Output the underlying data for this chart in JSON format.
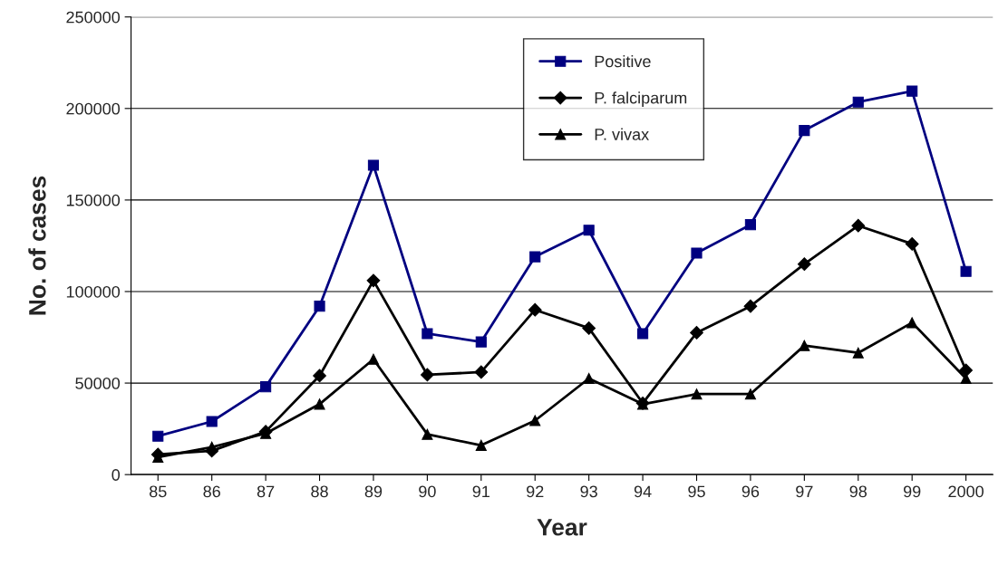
{
  "chart_data": {
    "type": "line",
    "xlabel": "Year",
    "ylabel": "No. of cases",
    "categories": [
      "85",
      "86",
      "87",
      "88",
      "89",
      "90",
      "91",
      "92",
      "93",
      "94",
      "95",
      "96",
      "97",
      "98",
      "99",
      "2000"
    ],
    "series": [
      {
        "name": "Positive",
        "color": "#000080",
        "marker": "square",
        "values": [
          21000,
          29000,
          48000,
          92000,
          169000,
          77000,
          72500,
          119000,
          133500,
          77000,
          121000,
          136500,
          188000,
          203500,
          209500,
          111000
        ]
      },
      {
        "name": "P. falciparum",
        "color": "#000000",
        "marker": "diamond",
        "values": [
          11000,
          13000,
          23500,
          54000,
          106000,
          54500,
          56000,
          90000,
          80000,
          39000,
          77500,
          92000,
          115000,
          136000,
          126000,
          57000
        ]
      },
      {
        "name": "P. vivax",
        "color": "#000000",
        "marker": "triangle",
        "values": [
          9500,
          15000,
          22500,
          38500,
          63000,
          22000,
          16000,
          29500,
          52500,
          38500,
          44000,
          44000,
          70500,
          66500,
          83000,
          52500
        ]
      }
    ],
    "ylim": [
      0,
      250000
    ],
    "yticks": [
      0,
      50000,
      100000,
      150000,
      200000,
      250000
    ],
    "grid": "y",
    "legend": "top",
    "line_style": "solid"
  }
}
